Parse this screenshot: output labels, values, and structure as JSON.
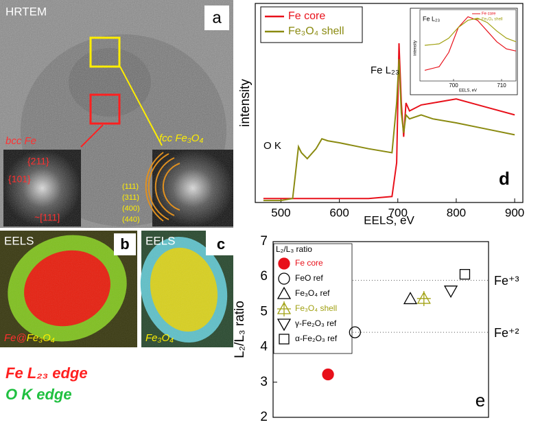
{
  "panels": {
    "a": {
      "title": "HRTEM",
      "label": "a",
      "inset_left": {
        "title": "bcc Fe",
        "labels": [
          "{211}",
          "{101}",
          "~[111]"
        ]
      },
      "inset_right": {
        "title": "fcc Fe₃O₄",
        "rings": [
          "(111)",
          "(311)",
          "(400)",
          "(440)"
        ]
      }
    },
    "b": {
      "title": "EELS",
      "label": "b",
      "caption": [
        "Fe@",
        "Fe₃O₄"
      ]
    },
    "c": {
      "title": "EELS",
      "label": "c",
      "caption": [
        "Fe₃O₄"
      ]
    }
  },
  "edge_legend": [
    "Fe L₂₃ edge",
    "O K edge"
  ],
  "chart_data": [
    {
      "type": "line",
      "xlabel": "EELS, eV",
      "ylabel": "intensity",
      "label": "d",
      "annotations": [
        "Fe L₂₃",
        "O K"
      ],
      "x": [
        470,
        500,
        520,
        525,
        530,
        535,
        545,
        560,
        570,
        580,
        600,
        650,
        690,
        698,
        702,
        706,
        710,
        714,
        720,
        740,
        760,
        800,
        850,
        900
      ],
      "xlim": [
        456,
        914
      ],
      "xticks": [
        500,
        600,
        700,
        800,
        900
      ],
      "ylim": [
        0,
        1
      ],
      "series": [
        {
          "name": "Fe core",
          "color": "#e8101a",
          "values": [
            0.02,
            0.02,
            0.02,
            0.02,
            0.02,
            0.02,
            0.02,
            0.02,
            0.02,
            0.02,
            0.02,
            0.02,
            0.03,
            0.2,
            0.8,
            0.5,
            0.33,
            0.5,
            0.46,
            0.49,
            0.5,
            0.52,
            0.48,
            0.44
          ]
        },
        {
          "name": "Fe₃O₄ shell",
          "color": "#8a8a10",
          "values": [
            0.01,
            0.01,
            0.02,
            0.15,
            0.28,
            0.25,
            0.22,
            0.27,
            0.32,
            0.31,
            0.3,
            0.27,
            0.25,
            0.5,
            0.72,
            0.45,
            0.35,
            0.44,
            0.42,
            0.44,
            0.42,
            0.4,
            0.37,
            0.34
          ]
        }
      ],
      "inset": {
        "title": "Fe L₂₃",
        "xlabel": "EELS, eV",
        "ylabel": "intensity",
        "x": [
          694,
          697,
          699,
          701,
          703,
          705,
          707,
          709,
          711,
          713
        ],
        "xlim": [
          693,
          713
        ],
        "xticks": [
          700,
          710
        ],
        "ylim": [
          0,
          1
        ],
        "series": [
          {
            "name": "Fe core",
            "color": "#e8101a",
            "values": [
              0.15,
              0.2,
              0.4,
              0.75,
              0.9,
              0.85,
              0.7,
              0.55,
              0.45,
              0.42
            ]
          },
          {
            "name": "Fe₃O₄ shell",
            "color": "#a0a010",
            "values": [
              0.5,
              0.52,
              0.6,
              0.75,
              0.85,
              0.88,
              0.82,
              0.7,
              0.6,
              0.55
            ]
          }
        ]
      }
    },
    {
      "type": "scatter",
      "ylabel": "L₂/L₃ ratio",
      "legend_title": "L₂/L₃ ratio",
      "label": "e",
      "xlim": [
        0,
        100
      ],
      "ylim": [
        2,
        7
      ],
      "yticks": [
        2,
        3,
        4,
        5,
        6,
        7
      ],
      "reference_lines": [
        {
          "value": 5.9,
          "label": "Fe⁺³"
        },
        {
          "value": 4.42,
          "label": "Fe⁺²"
        }
      ],
      "series": [
        {
          "name": "Fe core",
          "color": "#e8101a",
          "marker": "circle-filled",
          "x": [
            25.5
          ],
          "values": [
            3.22
          ]
        },
        {
          "name": "FeO ref",
          "color": "#000000",
          "marker": "circle",
          "x": [
            38
          ],
          "values": [
            4.42
          ]
        },
        {
          "name": "Fe₃O₄ ref",
          "color": "#000000",
          "marker": "triangle",
          "x": [
            63.7
          ],
          "values": [
            5.37
          ]
        },
        {
          "name": "Fe₃O₄ shell",
          "color": "#a0a010",
          "marker": "triangle-cross",
          "x": [
            70
          ],
          "values": [
            5.38
          ]
        },
        {
          "name": "γ-Fe₂O₃ ref",
          "color": "#000000",
          "marker": "triangle-down",
          "x": [
            82.5
          ],
          "values": [
            5.6
          ]
        },
        {
          "name": "α-Fe₂O₃ ref",
          "color": "#000000",
          "marker": "square",
          "x": [
            89
          ],
          "values": [
            6.07
          ]
        }
      ]
    }
  ]
}
